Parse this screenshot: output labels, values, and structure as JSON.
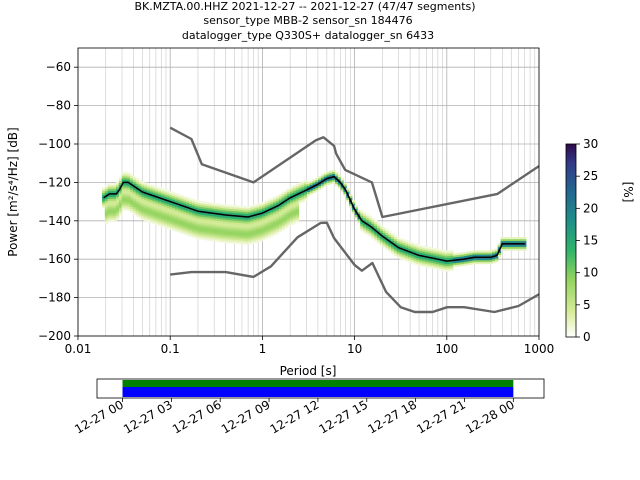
{
  "chart_data": [
    {
      "type": "heatmap",
      "title_lines": [
        "BK.MZTA.00.HHZ   2021-12-27 -- 2021-12-27  (47/47 segments)",
        "sensor_type MBB-2 sensor_sn 184476",
        "datalogger_type Q330S+ datalogger_sn 6433"
      ],
      "xlabel": "Period [s]",
      "ylabel": "Power [m²/s⁴/Hz] [dB]",
      "xscale": "log",
      "xlim": [
        0.01,
        1000
      ],
      "ylim": [
        -200,
        -50
      ],
      "xticks": [
        {
          "value": 0.01,
          "label": "0.01"
        },
        {
          "value": 0.1,
          "label": "0.1"
        },
        {
          "value": 1,
          "label": "1"
        },
        {
          "value": 10,
          "label": "10"
        },
        {
          "value": 100,
          "label": "100"
        },
        {
          "value": 1000,
          "label": "1000"
        }
      ],
      "yticks": [
        {
          "value": -200,
          "label": "−200"
        },
        {
          "value": -180,
          "label": "−180"
        },
        {
          "value": -160,
          "label": "−160"
        },
        {
          "value": -140,
          "label": "−140"
        },
        {
          "value": -120,
          "label": "−120"
        },
        {
          "value": -100,
          "label": "−100"
        },
        {
          "value": -80,
          "label": "−80"
        },
        {
          "value": -60,
          "label": "−60"
        }
      ],
      "grid": true,
      "series": [
        {
          "style": "mode",
          "color": "#000000",
          "x": [
            0.019,
            0.022,
            0.026,
            0.028,
            0.031,
            0.035,
            0.05,
            0.1,
            0.2,
            0.4,
            0.7,
            1.0,
            1.5,
            2.0,
            3.0,
            4.0,
            5.0,
            6.0,
            7.0,
            8.0,
            10.0,
            12.0,
            15.0,
            20.0,
            30.0,
            50.0,
            80.0,
            100.0,
            150.0,
            200.0,
            300.0,
            350.0,
            400.0,
            500.0,
            700.0
          ],
          "y": [
            -128,
            -126,
            -126,
            -124,
            -120,
            -120,
            -125,
            -130,
            -135,
            -137,
            -138,
            -136,
            -132,
            -128,
            -124,
            -121,
            -118,
            -117,
            -120,
            -124,
            -134,
            -140,
            -143,
            -148,
            -154,
            -158,
            -160,
            -161,
            -160,
            -159,
            -159,
            -158,
            -152,
            -152,
            -152
          ]
        },
        {
          "style": "model",
          "color": "#666666",
          "x": [
            0.1,
            0.17,
            0.22,
            0.8,
            3.8,
            4.6,
            6.0,
            6.3,
            7.9,
            15.4,
            20.0,
            354.8,
            1000.0
          ],
          "y": [
            -91.5,
            -97.4,
            -110.5,
            -120.0,
            -98.0,
            -96.5,
            -101.0,
            -105.0,
            -113.5,
            -120.0,
            -138.0,
            -126.0,
            -111.5
          ]
        },
        {
          "style": "model",
          "color": "#666666",
          "x": [
            0.1,
            0.17,
            0.4,
            0.8,
            1.24,
            2.4,
            4.3,
            5.0,
            6.0,
            10.0,
            12.0,
            15.6,
            21.9,
            31.6,
            45.0,
            70.0,
            101.0,
            154.0,
            328.0,
            600.0,
            1000.0
          ],
          "y": [
            -168.0,
            -166.7,
            -166.7,
            -169.2,
            -163.7,
            -148.6,
            -141.1,
            -141.0,
            -149.0,
            -163.0,
            -166.0,
            -162.0,
            -177.0,
            -185.0,
            -187.5,
            -187.5,
            -185.0,
            -185.0,
            -187.5,
            -184.4,
            -178.3
          ]
        }
      ],
      "colorbar": {
        "label": "[%]",
        "min": 0,
        "max": 30,
        "ticks": [
          {
            "value": 0,
            "label": "0"
          },
          {
            "value": 5,
            "label": "5"
          },
          {
            "value": 10,
            "label": "10"
          },
          {
            "value": 15,
            "label": "15"
          },
          {
            "value": 20,
            "label": "20"
          },
          {
            "value": 25,
            "label": "25"
          },
          {
            "value": 30,
            "label": "30"
          }
        ]
      }
    },
    {
      "type": "bar",
      "role": "data-coverage",
      "xlim": [
        "2021-12-26 22:26",
        "2021-12-28 01:53"
      ],
      "coverage": [
        {
          "start": "2021-12-27 00:00",
          "end": "2021-12-28 00:00"
        }
      ],
      "tick_labels": [
        "12-27 00",
        "12-27 03",
        "12-27 06",
        "12-27 09",
        "12-27 12",
        "12-27 15",
        "12-27 18",
        "12-27 21",
        "12-28 00"
      ],
      "colors": {
        "data": "#0000ff",
        "used": "#008000"
      }
    }
  ]
}
